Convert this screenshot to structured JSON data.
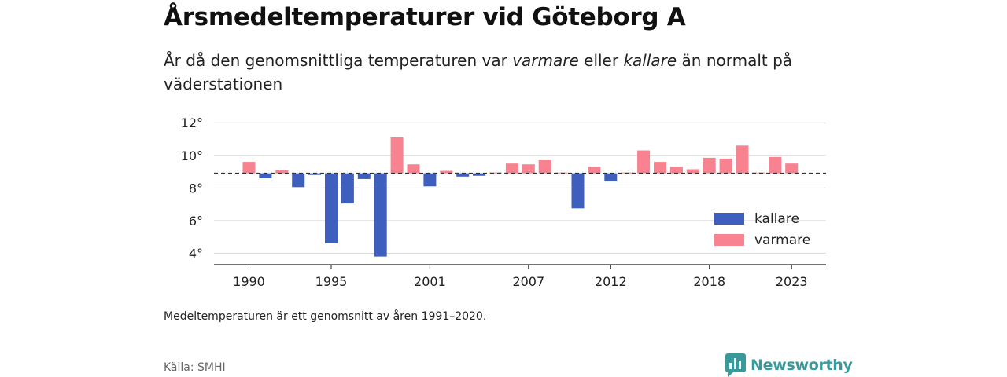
{
  "title": "Årsmedeltemperaturer vid Göteborg A",
  "subtitle": {
    "part1": "År då den genomsnittliga temperaturen var ",
    "warm_word": "varmare",
    "part2": " eller ",
    "cold_word": "kallare",
    "part3": " än normalt på väderstationen"
  },
  "note": "Medeltemperaturen är ett genomsnitt av åren 1991–2020.",
  "source": "Källa: SMHI",
  "brand": "Newsworthy",
  "colors": {
    "cold": "#3f5fbf",
    "warm": "#f8828f",
    "brand": "#3a9a9b",
    "grid": "#d9d9d9",
    "reference_line": "#333333"
  },
  "chart_data": {
    "type": "bar",
    "baseline": 8.9,
    "ylim": [
      3.3,
      12.3
    ],
    "yticks": [
      4,
      6,
      8,
      10,
      12
    ],
    "ytick_labels": [
      "4°",
      "6°",
      "8°",
      "10°",
      "12°"
    ],
    "xticks": [
      1990,
      1995,
      2001,
      2007,
      2012,
      2018,
      2023
    ],
    "xtick_labels": [
      "1990",
      "1995",
      "2001",
      "2007",
      "2012",
      "2018",
      "2023"
    ],
    "grid": true,
    "legend": {
      "position": "bottom-right",
      "entries": [
        {
          "label": "kallare",
          "color": "#3f5fbf"
        },
        {
          "label": "varmare",
          "color": "#f8828f"
        }
      ]
    },
    "years": [
      1990,
      1991,
      1992,
      1993,
      1994,
      1995,
      1996,
      1997,
      1998,
      1999,
      2000,
      2001,
      2002,
      2003,
      2004,
      2005,
      2006,
      2007,
      2008,
      2009,
      2010,
      2011,
      2012,
      2013,
      2014,
      2015,
      2016,
      2017,
      2018,
      2019,
      2020,
      2021,
      2022,
      2023
    ],
    "values": [
      9.6,
      8.6,
      9.1,
      8.05,
      8.8,
      4.6,
      7.05,
      8.55,
      3.8,
      11.1,
      9.45,
      8.1,
      9.05,
      8.7,
      8.75,
      8.95,
      9.5,
      9.45,
      9.7,
      8.95,
      6.75,
      9.3,
      8.4,
      8.95,
      10.3,
      9.6,
      9.3,
      9.15,
      9.85,
      9.8,
      10.6,
      8.95,
      9.9,
      9.5
    ]
  }
}
